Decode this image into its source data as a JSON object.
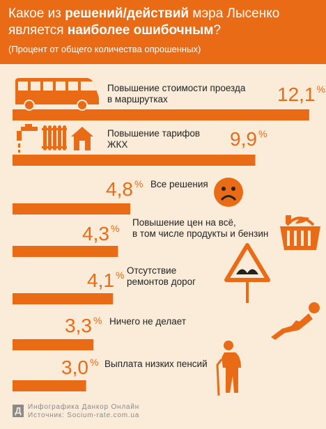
{
  "header": {
    "title_line1_pre": "Какое из ",
    "title_line1_bold": "решений/действий",
    "title_line1_post": " мэра Лысенко",
    "title_line2_pre": "является ",
    "title_line2_bold": "наиболее ошибочным",
    "title_line2_post": "?",
    "subtitle": "(Процент от общего количества опрошенных)"
  },
  "colors": {
    "accent": "#ea6b16",
    "background": "#fbebd9",
    "text": "#222222"
  },
  "chart_data": {
    "type": "bar",
    "orientation": "horizontal",
    "title": "Какое из решений/действий мэра Лысенко является наиболее ошибочным?",
    "subtitle": "(Процент от общего количества опрошенных)",
    "unit": "%",
    "categories": [
      "Повышение стоимости проезда в маршрутках",
      "Повышение тарифов ЖКХ",
      "Все решения",
      "Повышение цен на всё, в том числе продукты и бензин",
      "Отсутствие ремонтов дорог",
      "Ничего не делает",
      "Выплата низких пенсий"
    ],
    "values": [
      12.1,
      9.9,
      4.8,
      4.3,
      4.1,
      3.3,
      3.0
    ],
    "value_labels": [
      "12,1",
      "9,9",
      "4,8",
      "4,3",
      "4,1",
      "3,3",
      "3,0"
    ],
    "label_lines": [
      [
        "Повышение стоимости проезда",
        "в маршрутках"
      ],
      [
        "Повышение тарифов",
        "ЖКХ"
      ],
      [
        "Все решения"
      ],
      [
        "Повышение цен на всё,",
        "в том числе продукты и бензин"
      ],
      [
        "Отсутствие",
        "ремонтов дорог"
      ],
      [
        "Ничего не делает"
      ],
      [
        "Выплата низких пенсий"
      ]
    ],
    "icons": [
      "minibus-icon",
      "utilities-icon",
      "sad-face-icon",
      "grocery-basket-icon",
      "road-sign-icon",
      "lying-man-icon",
      "elderly-man-icon"
    ]
  },
  "footer": {
    "logo_letter": "Д",
    "line1": "Инфографика Данкор Онлайн",
    "line2": "Источник: Socium-rate.com.ua"
  }
}
